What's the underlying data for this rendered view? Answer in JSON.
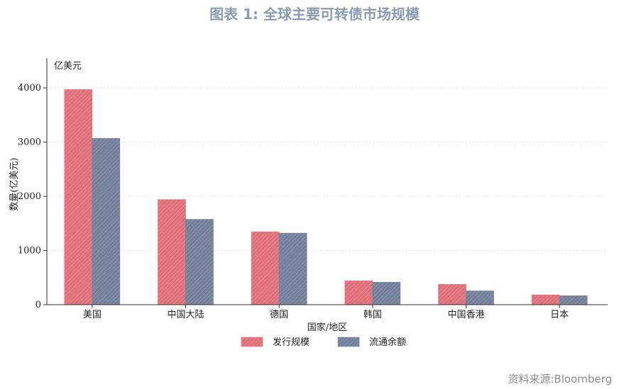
{
  "header": {
    "title": "图表 1:  全球主要可转债市场规模"
  },
  "footer": {
    "source": "资料来源:Bloomberg"
  },
  "colors": {
    "issue": "#df6f79",
    "outstanding": "#74809a",
    "title": "#8a9bb0"
  },
  "chart_data": {
    "type": "bar",
    "title": "图表 1:  全球主要可转债市场规模",
    "unit_label": "亿美元",
    "xlabel": "国家/地区",
    "ylabel": "数量(亿美元)",
    "ylim": [
      0,
      4550
    ],
    "yticks": [
      0,
      1000,
      2000,
      3000,
      4000
    ],
    "grid": true,
    "legend_position": "bottom-center",
    "categories": [
      "美国",
      "中国大陆",
      "德国",
      "韩国",
      "中国香港",
      "日本"
    ],
    "series": [
      {
        "name": "发行规模",
        "values": [
          3970,
          1940,
          1345,
          440,
          375,
          180
        ]
      },
      {
        "name": "流通余额",
        "values": [
          3070,
          1575,
          1320,
          415,
          255,
          165
        ]
      }
    ]
  }
}
